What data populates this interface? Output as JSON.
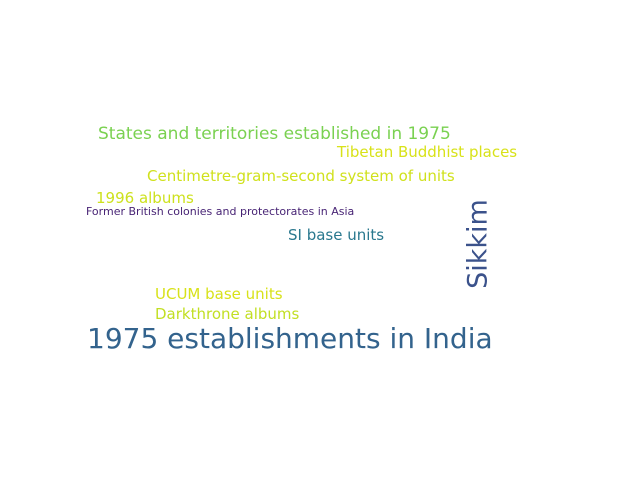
{
  "words": [
    {
      "key": "states",
      "text": "States and territories established in 1975",
      "color": "#7ad151"
    },
    {
      "key": "tibetan",
      "text": "Tibetan Buddhist places",
      "color": "#d8e219"
    },
    {
      "key": "cgs",
      "text": "Centimetre-gram-second system of units",
      "color": "#d0e11c"
    },
    {
      "key": "y1996",
      "text": "1996 albums",
      "color": "#cde11d"
    },
    {
      "key": "former",
      "text": "Former British colonies and protectorates in Asia",
      "color": "#482475"
    },
    {
      "key": "si",
      "text": "SI base units",
      "color": "#2a788e"
    },
    {
      "key": "sikkim",
      "text": "Sikkim",
      "color": "#3b528b"
    },
    {
      "key": "ucum",
      "text": "UCUM base units",
      "color": "#d8e219"
    },
    {
      "key": "dark",
      "text": "Darkthrone albums",
      "color": "#c2df23"
    },
    {
      "key": "est1975",
      "text": "1975 establishments in India",
      "color": "#33638d"
    }
  ]
}
